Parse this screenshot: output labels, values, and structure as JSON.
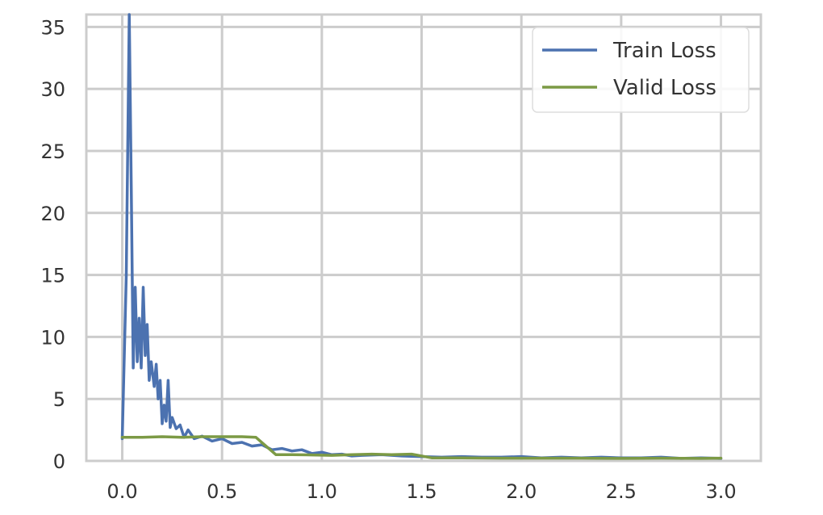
{
  "chart_data": {
    "type": "line",
    "title": "",
    "xlabel": "",
    "ylabel": "",
    "xlim": [
      -0.18,
      3.2
    ],
    "ylim": [
      0,
      36
    ],
    "xticks": [
      0.0,
      0.5,
      1.0,
      1.5,
      2.0,
      2.5,
      3.0
    ],
    "xtick_labels": [
      "0.0",
      "0.5",
      "1.0",
      "1.5",
      "2.0",
      "2.5",
      "3.0"
    ],
    "yticks": [
      0,
      5,
      10,
      15,
      20,
      25,
      30,
      35
    ],
    "ytick_labels": [
      "0",
      "5",
      "10",
      "15",
      "20",
      "25",
      "30",
      "35"
    ],
    "grid": true,
    "legend_position": "top-right",
    "series": [
      {
        "name": "Train Loss",
        "color": "#4c72b0",
        "x": [
          0.0,
          0.02,
          0.035,
          0.045,
          0.055,
          0.065,
          0.075,
          0.085,
          0.095,
          0.105,
          0.115,
          0.125,
          0.135,
          0.145,
          0.16,
          0.17,
          0.18,
          0.19,
          0.2,
          0.21,
          0.22,
          0.23,
          0.24,
          0.25,
          0.27,
          0.29,
          0.31,
          0.33,
          0.36,
          0.4,
          0.45,
          0.5,
          0.55,
          0.6,
          0.65,
          0.7,
          0.75,
          0.8,
          0.85,
          0.9,
          0.95,
          1.0,
          1.05,
          1.1,
          1.15,
          1.2,
          1.3,
          1.4,
          1.5,
          1.6,
          1.7,
          1.8,
          1.9,
          2.0,
          2.1,
          2.2,
          2.3,
          2.4,
          2.5,
          2.6,
          2.7,
          2.8,
          2.9,
          3.0
        ],
        "y": [
          1.8,
          15.0,
          36.0,
          22.0,
          7.5,
          14.0,
          8.0,
          11.5,
          7.5,
          14.0,
          8.5,
          11.0,
          6.5,
          8.0,
          6.0,
          7.8,
          5.0,
          6.5,
          3.0,
          4.5,
          3.2,
          6.5,
          2.7,
          3.5,
          2.6,
          2.9,
          1.9,
          2.5,
          1.8,
          2.0,
          1.6,
          1.8,
          1.4,
          1.5,
          1.2,
          1.3,
          0.9,
          1.0,
          0.8,
          0.9,
          0.6,
          0.7,
          0.5,
          0.55,
          0.4,
          0.45,
          0.5,
          0.4,
          0.35,
          0.3,
          0.35,
          0.3,
          0.3,
          0.35,
          0.25,
          0.3,
          0.25,
          0.3,
          0.25,
          0.25,
          0.3,
          0.2,
          0.25,
          0.2
        ]
      },
      {
        "name": "Valid Loss",
        "color": "#7c9a45",
        "x": [
          0.0,
          0.1,
          0.2,
          0.3,
          0.4,
          0.5,
          0.6,
          0.67,
          0.77,
          0.85,
          0.95,
          1.05,
          1.15,
          1.25,
          1.35,
          1.45,
          1.55,
          1.7,
          1.9,
          2.1,
          2.3,
          2.5,
          2.7,
          2.9,
          3.0
        ],
        "y": [
          1.9,
          1.9,
          1.95,
          1.9,
          1.95,
          1.95,
          1.95,
          1.9,
          0.5,
          0.5,
          0.48,
          0.45,
          0.5,
          0.55,
          0.5,
          0.55,
          0.25,
          0.25,
          0.22,
          0.22,
          0.22,
          0.2,
          0.22,
          0.2,
          0.22
        ]
      }
    ]
  }
}
